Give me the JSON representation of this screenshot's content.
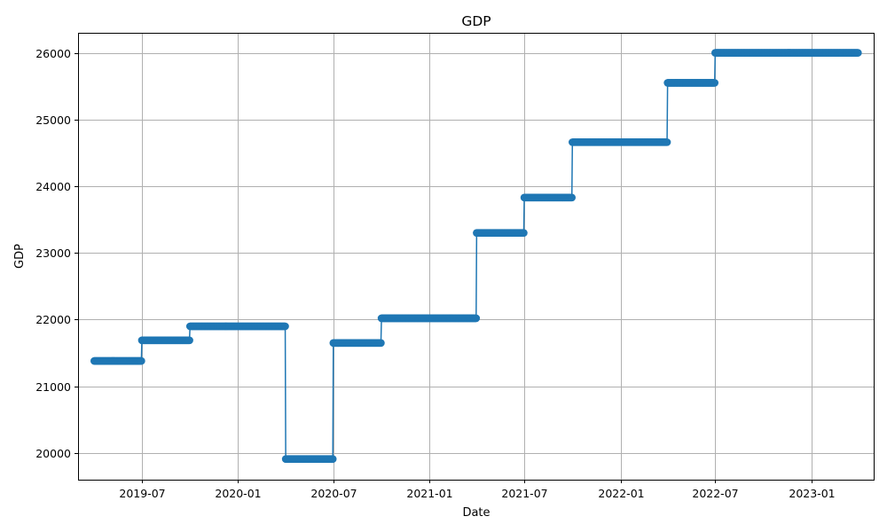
{
  "chart_data": {
    "type": "line",
    "title": "GDP",
    "xlabel": "Date",
    "ylabel": "GDP",
    "x_start": "2019-04-01",
    "x_end": "2023-03-31",
    "xlim": [
      "2019-03-01",
      "2023-04-30"
    ],
    "ylim": [
      19600,
      26300
    ],
    "grid": true,
    "x_ticks": [
      "2019-07-01",
      "2020-01-01",
      "2020-07-01",
      "2021-01-01",
      "2021-07-01",
      "2022-01-01",
      "2022-07-01",
      "2023-01-01"
    ],
    "x_tick_labels": [
      "2019-07",
      "2020-01",
      "2020-07",
      "2021-01",
      "2021-07",
      "2022-01",
      "2022-07",
      "2023-01"
    ],
    "y_ticks": [
      20000,
      21000,
      22000,
      23000,
      24000,
      25000,
      26000
    ],
    "y_tick_labels": [
      "20000",
      "21000",
      "22000",
      "23000",
      "24000",
      "25000",
      "26000"
    ],
    "series": [
      {
        "name": "",
        "color": "#1f77b4",
        "marker": "circle",
        "steps": [
          {
            "start": "2019-04-01",
            "value": 21380
          },
          {
            "start": "2019-07-01",
            "value": 21690
          },
          {
            "start": "2019-10-01",
            "value": 21900
          },
          {
            "start": "2020-04-01",
            "value": 19910
          },
          {
            "start": "2020-07-01",
            "value": 21650
          },
          {
            "start": "2020-10-01",
            "value": 22020
          },
          {
            "start": "2021-04-01",
            "value": 23300
          },
          {
            "start": "2021-07-01",
            "value": 23830
          },
          {
            "start": "2021-10-01",
            "value": 24660
          },
          {
            "start": "2022-04-01",
            "value": 25550
          },
          {
            "start": "2022-07-01",
            "value": 26000
          }
        ]
      }
    ]
  }
}
